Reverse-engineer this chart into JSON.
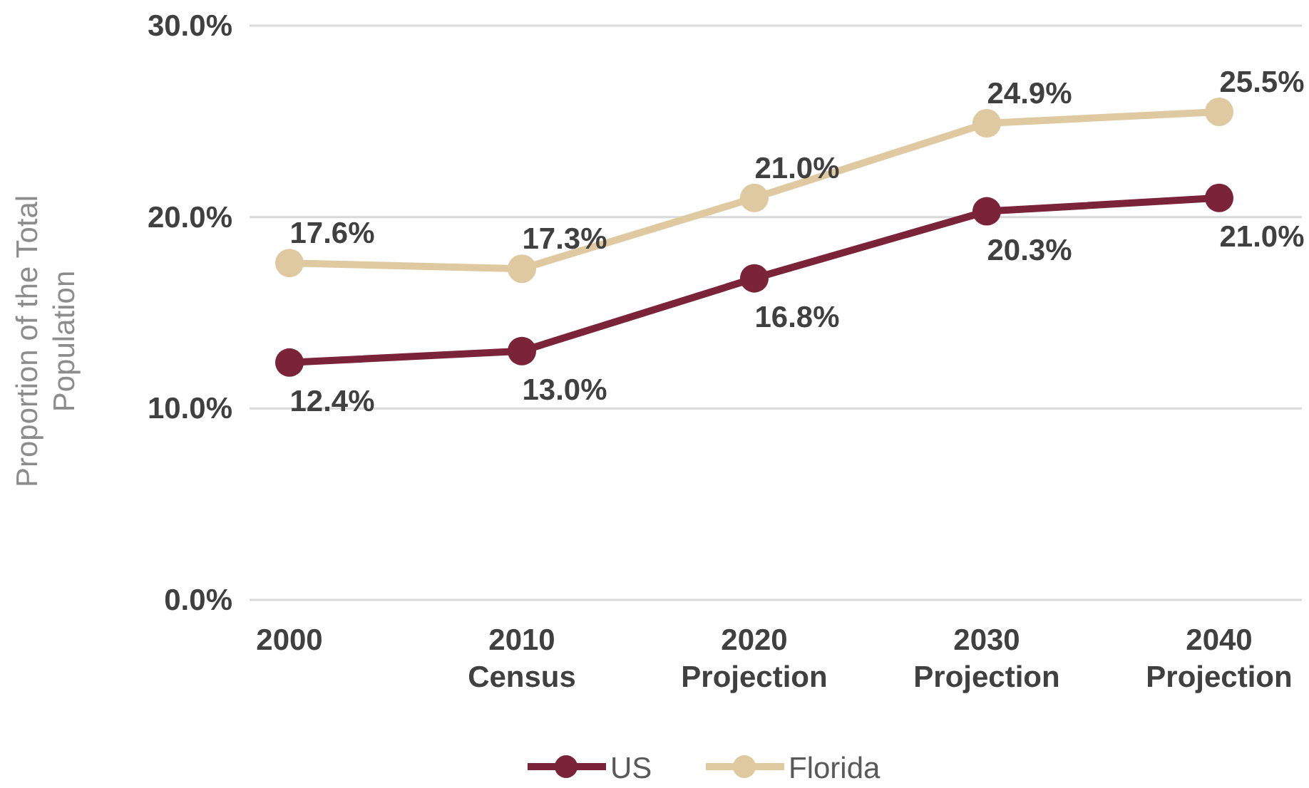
{
  "chart_data": {
    "type": "line",
    "ylabel": "Proportion of the Total Population",
    "categories": [
      "2000",
      "2010\nCensus",
      "2020\nProjection",
      "2030\nProjection",
      "2040\nProjection"
    ],
    "series": [
      {
        "name": "US",
        "color": "#7b2338",
        "values": [
          12.4,
          13.0,
          16.8,
          20.3,
          21.0
        ],
        "value_labels": [
          "12.4%",
          "13.0%",
          "16.8%",
          "20.3%",
          "21.0%"
        ]
      },
      {
        "name": "Florida",
        "color": "#dfc9a0",
        "values": [
          17.6,
          17.3,
          21.0,
          24.9,
          25.5
        ],
        "value_labels": [
          "17.6%",
          "17.3%",
          "21.0%",
          "24.9%",
          "25.5%"
        ]
      }
    ],
    "ylim": [
      0,
      30
    ],
    "yticks": [
      {
        "value": 0,
        "label": "0.0%"
      },
      {
        "value": 10,
        "label": "10.0%"
      },
      {
        "value": 20,
        "label": "20.0%"
      },
      {
        "value": 30,
        "label": "30.0%"
      }
    ],
    "grid": "y",
    "legend": "bottom",
    "marker": "circle",
    "line_style": "solid"
  }
}
